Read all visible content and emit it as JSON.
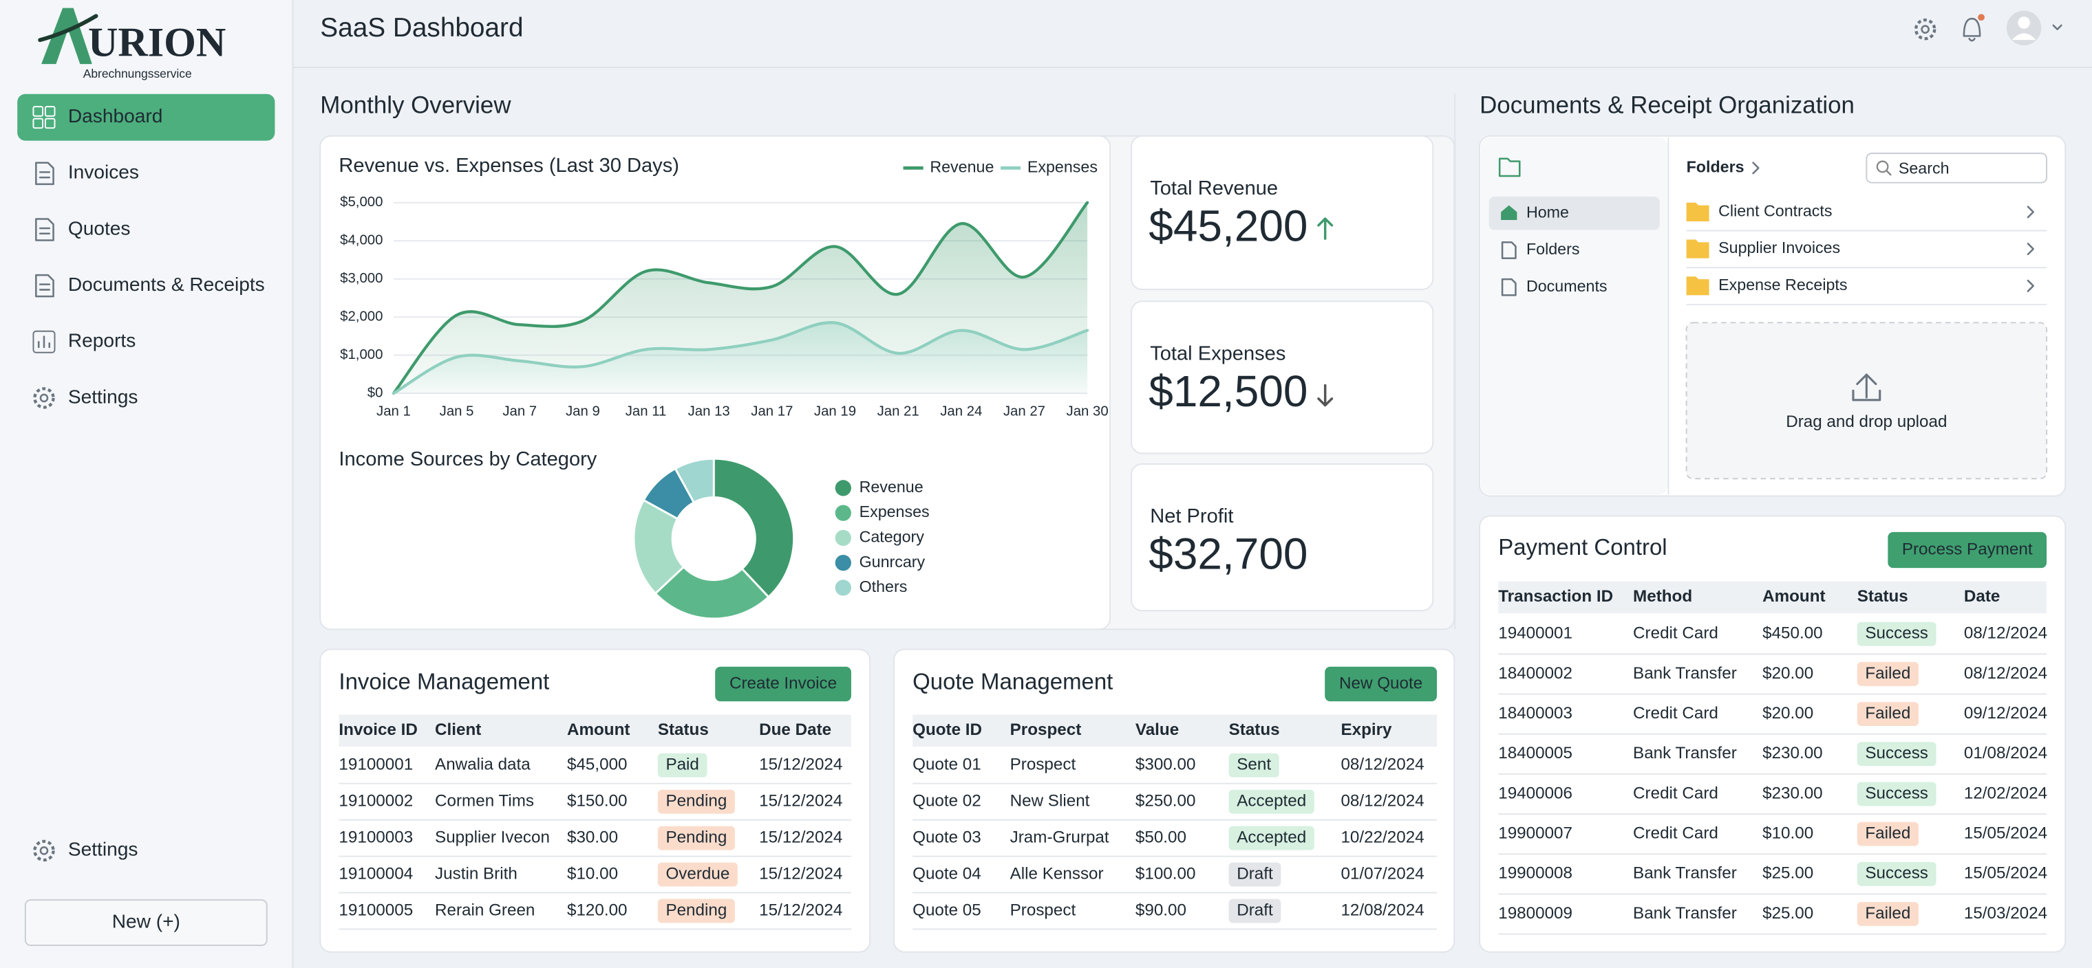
{
  "brand": {
    "logo_text": "URION",
    "tagline": "Abrechnungsservice"
  },
  "nav": [
    "Dashboard",
    "Invoices",
    "Quotes",
    "Documents & Receipts",
    "Reports",
    "Settings"
  ],
  "nav_active": 0,
  "sidebar_footer": {
    "settings": "Settings",
    "new_button": "New (+)"
  },
  "header": {
    "title": "SaaS Dashboard"
  },
  "monthly_overview": {
    "title": "Monthly Overview"
  },
  "chart_data": [
    {
      "type": "line",
      "title": "Revenue vs. Expenses (Last 30 Days)",
      "categories": [
        "Jan 1",
        "Jan 5",
        "Jan 7",
        "Jan 9",
        "Jan 11",
        "Jan 13",
        "Jan 17",
        "Jan 19",
        "Jan 21",
        "Jan 24",
        "Jan 27",
        "Jan 30"
      ],
      "series": [
        {
          "name": "Revenue",
          "color": "#3e9a6c",
          "values": [
            0,
            2050,
            1800,
            1900,
            3200,
            2900,
            2800,
            3850,
            2600,
            4450,
            3050,
            5000
          ]
        },
        {
          "name": "Expenses",
          "color": "#8fd0bf",
          "values": [
            0,
            950,
            850,
            700,
            1150,
            1150,
            1400,
            1850,
            1050,
            1650,
            1150,
            1650
          ]
        }
      ],
      "ylim": [
        0,
        5000
      ],
      "yticks": [
        {
          "value": 0,
          "label": "$0"
        },
        {
          "value": 1000,
          "label": "$1,000"
        },
        {
          "value": 2000,
          "label": "$2,000"
        },
        {
          "value": 3000,
          "label": "$3,000"
        },
        {
          "value": 4000,
          "label": "$4,000"
        },
        {
          "value": 5000,
          "label": "$5,000"
        }
      ],
      "grid": true,
      "legend": "top-right",
      "area": true
    },
    {
      "type": "donut",
      "title": "Income Sources by Category",
      "categories": [
        "Revenue",
        "Expenses",
        "Category",
        "Gunrcary",
        "Others"
      ],
      "values": [
        38,
        25,
        20,
        9,
        8
      ],
      "colors": [
        "#3e9a6c",
        "#5cb88a",
        "#a6dcc6",
        "#3b8ea5",
        "#9fd6cf"
      ]
    }
  ],
  "kpis": [
    {
      "label": "Total Revenue",
      "value": "$45,200",
      "trend": "up"
    },
    {
      "label": "Total Expenses",
      "value": "$12,500",
      "trend": "down"
    },
    {
      "label": "Net Profit",
      "value": "$32,700"
    }
  ],
  "documents": {
    "title": "Documents & Receipt Organization",
    "tree": [
      "Home",
      "Folders",
      "Documents"
    ],
    "breadcrumb": "Folders",
    "search_placeholder": "Search",
    "folders": [
      "Client Contracts",
      "Supplier Invoices",
      "Expense Receipts"
    ],
    "upload": "Drag and drop upload"
  },
  "invoices": {
    "title": "Invoice Management",
    "button": "Create Invoice",
    "columns": [
      "Invoice ID",
      "Client",
      "Amount",
      "Status",
      "Due Date"
    ],
    "rows": [
      [
        "19100001",
        "Anwalia data",
        "$45,000",
        "Paid",
        "15/12/2024"
      ],
      [
        "19100002",
        "Cormen Tims",
        "$150.00",
        "Pending",
        "15/12/2024"
      ],
      [
        "19100003",
        "Supplier Ivecon",
        "$30.00",
        "Pending",
        "15/12/2024"
      ],
      [
        "19100004",
        "Justin Brith",
        "$10.00",
        "Overdue",
        "15/12/2024"
      ],
      [
        "19100005",
        "Rerain Green",
        "$120.00",
        "Pending",
        "15/12/2024"
      ]
    ]
  },
  "quotes": {
    "title": "Quote Management",
    "button": "New Quote",
    "columns": [
      "Quote ID",
      "Prospect",
      "Value",
      "Status",
      "Expiry"
    ],
    "rows": [
      [
        "Quote 01",
        "Prospect",
        "$300.00",
        "Sent",
        "08/12/2024"
      ],
      [
        "Quote 02",
        "New Slient",
        "$250.00",
        "Accepted",
        "08/12/2024"
      ],
      [
        "Quote 03",
        "Jram-Grurpat",
        "$50.00",
        "Accepted",
        "10/22/2024"
      ],
      [
        "Quote 04",
        "Alle Kenssor",
        "$100.00",
        "Draft",
        "01/07/2024"
      ],
      [
        "Quote 05",
        "Prospect",
        "$90.00",
        "Draft",
        "12/08/2024"
      ]
    ]
  },
  "payments": {
    "title": "Payment Control",
    "button": "Process Payment",
    "columns": [
      "Transaction ID",
      "Method",
      "Amount",
      "Status",
      "Date"
    ],
    "rows": [
      [
        "19400001",
        "Credit Card",
        "$450.00",
        "Success",
        "08/12/2024"
      ],
      [
        "18400002",
        "Bank Transfer",
        "$20.00",
        "Failed",
        "08/12/2024"
      ],
      [
        "18400003",
        "Credit Card",
        "$20.00",
        "Failed",
        "09/12/2024"
      ],
      [
        "18400005",
        "Bank Transfer",
        "$230.00",
        "Success",
        "01/08/2024"
      ],
      [
        "19400006",
        "Credit Card",
        "$230.00",
        "Success",
        "12/02/2024"
      ],
      [
        "19900007",
        "Credit Card",
        "$10.00",
        "Failed",
        "15/05/2024"
      ],
      [
        "19900008",
        "Bank Transfer",
        "$25.00",
        "Success",
        "15/05/2024"
      ],
      [
        "19800009",
        "Bank Transfer",
        "$25.00",
        "Failed",
        "15/03/2024"
      ]
    ]
  },
  "badge_colors": {
    "Paid": [
      "#d7f0e0",
      "#2f7d52"
    ],
    "Success": [
      "#d7f0e0",
      "#2f7d52"
    ],
    "Sent": [
      "#d7f0e0",
      "#2f7d52"
    ],
    "Accepted": [
      "#d7f0e0",
      "#2f7d52"
    ],
    "Pending": [
      "#fbdccb",
      "#a9532b"
    ],
    "Failed": [
      "#fbdccb",
      "#a9532b"
    ],
    "Overdue": [
      "#fbdccb",
      "#a9532b"
    ],
    "Draft": [
      "#e3e5e8",
      "#4a4f55"
    ]
  }
}
